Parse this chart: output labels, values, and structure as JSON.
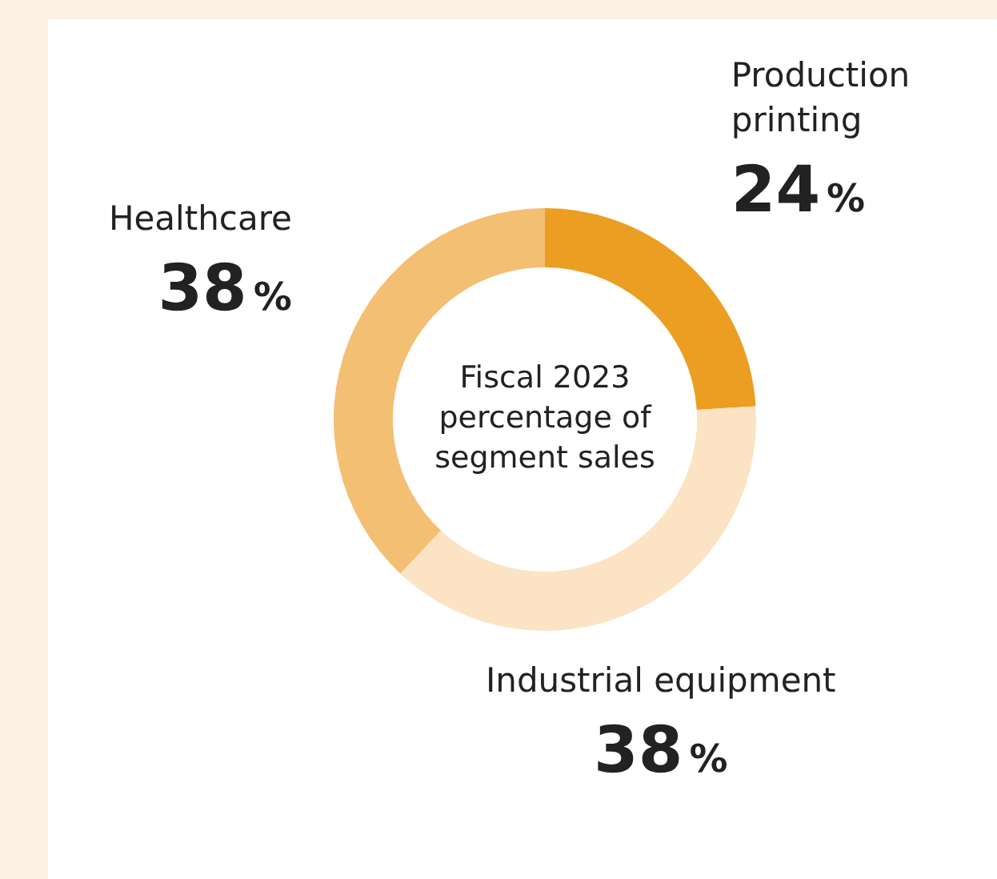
{
  "chart_data": {
    "type": "donut",
    "title": "Fiscal 2023 percentage of segment sales",
    "categories": [
      "Production printing",
      "Industrial equipment",
      "Healthcare"
    ],
    "values": [
      24,
      38,
      38
    ],
    "value_labels": [
      "24%",
      "38%",
      "38%"
    ],
    "colors": [
      "#eb9e22",
      "#fbe3c3",
      "#f3bf73"
    ],
    "legend": false
  }
}
